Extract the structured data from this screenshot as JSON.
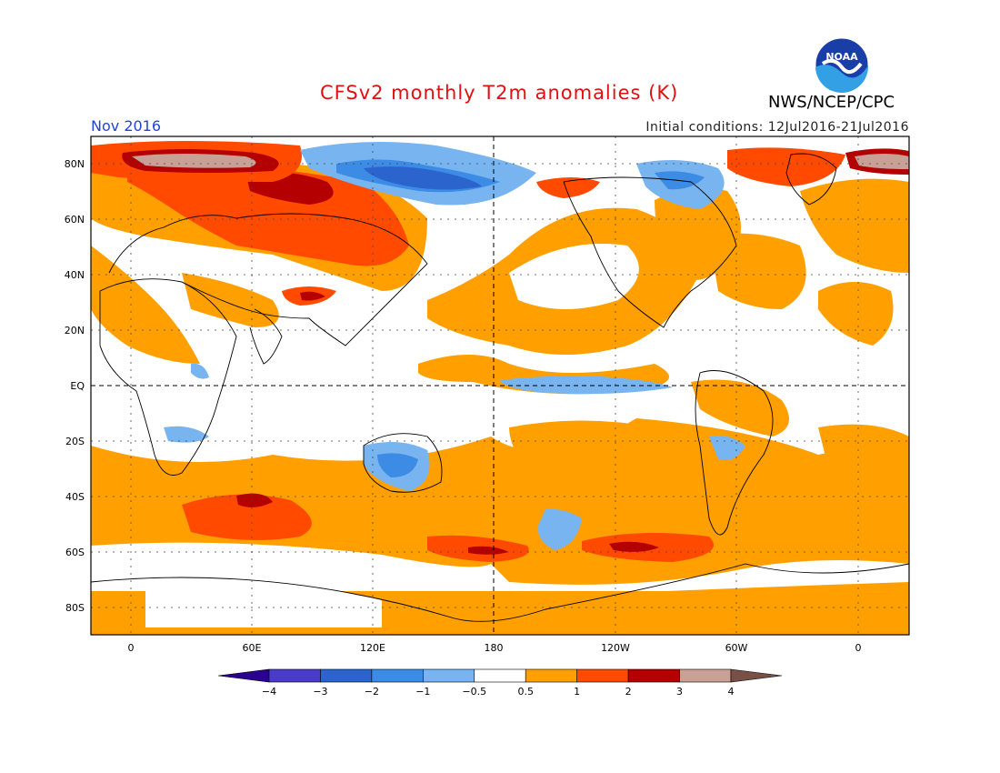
{
  "header": {
    "title": "CFSv2 monthly T2m anomalies (K)",
    "agency": "NWS/NCEP/CPC",
    "logo_text": "NOAA",
    "month": "Nov 2016",
    "initial_conditions": "Initial conditions: 12Jul2016-21Jul2016"
  },
  "map": {
    "lat_labels": [
      "80N",
      "60N",
      "40N",
      "20N",
      "EQ",
      "20S",
      "40S",
      "60S",
      "80S"
    ],
    "lon_labels": [
      "0",
      "60E",
      "120E",
      "180",
      "120W",
      "60W",
      "0"
    ]
  },
  "colorbar": {
    "levels": [
      "-4",
      "-3",
      "-2",
      "-1",
      "-0.5",
      "0.5",
      "1",
      "2",
      "3",
      "4"
    ],
    "colors": [
      "#2a0090",
      "#4a3cc8",
      "#2a64cc",
      "#3c8ce6",
      "#78b4f0",
      "#ffffff",
      "#ffa000",
      "#ff4a00",
      "#b40000",
      "#c8a096",
      "#785046"
    ]
  }
}
